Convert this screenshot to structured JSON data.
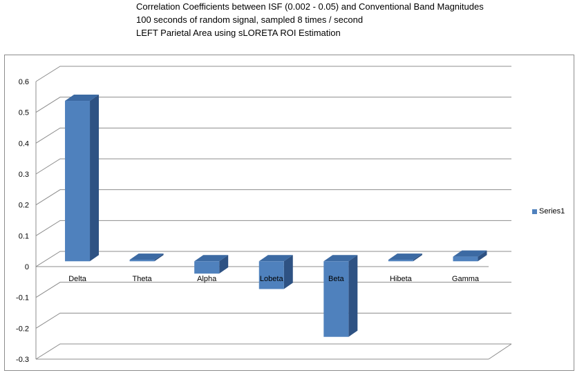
{
  "chart_data": {
    "type": "bar",
    "title_lines": [
      "Correlation Coefficients between ISF (0.002 - 0.05) and Conventional Band Magnitudes",
      "100 seconds of random signal, sampled 8 times / second",
      "LEFT Parietal Area using sLORETA ROI Estimation"
    ],
    "categories": [
      "Delta",
      "Theta",
      "Alpha",
      "Lobeta",
      "Beta",
      "Hibeta",
      "Gamma"
    ],
    "series": [
      {
        "name": "Series1",
        "values": [
          0.52,
          0.005,
          -0.04,
          -0.09,
          -0.245,
          0.005,
          0.015
        ]
      }
    ],
    "ylim": [
      -0.3,
      0.6
    ],
    "yticks": [
      "0.6",
      "0.5",
      "0.4",
      "0.3",
      "0.2",
      "0.1",
      "0",
      "-0.1",
      "-0.2",
      "-0.3"
    ],
    "ytick_values": [
      0.6,
      0.5,
      0.4,
      0.3,
      0.2,
      0.1,
      0,
      -0.1,
      -0.2,
      -0.3
    ],
    "grid": true,
    "legend": "right",
    "colors": {
      "bar_front": "#4f81bd",
      "bar_side": "#2e5283",
      "bar_top": "#3c6aa3",
      "grid": "#8c8c8c"
    }
  }
}
